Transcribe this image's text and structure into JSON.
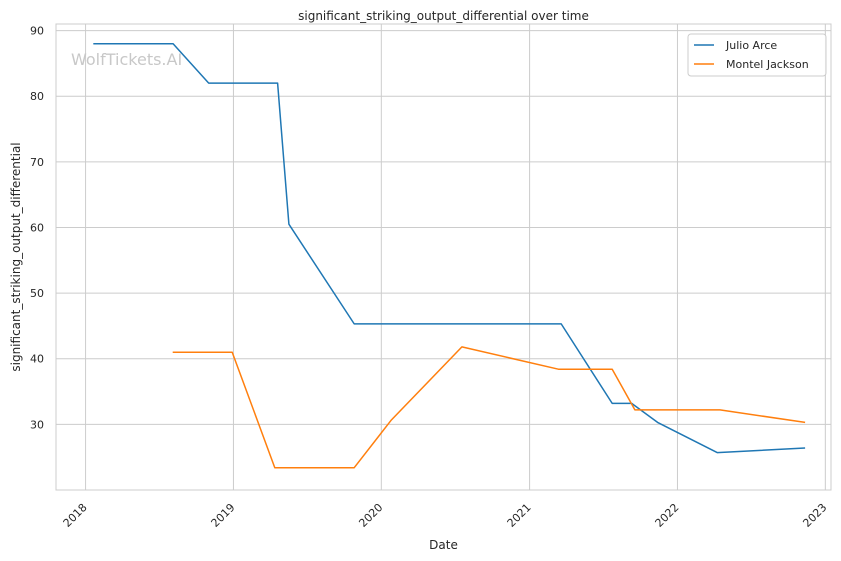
{
  "chart_data": {
    "type": "line",
    "title": "significant_striking_output_differential over time",
    "xlabel": "Date",
    "ylabel": "significant_striking_output_differential",
    "watermark": "WolfTickets.AI",
    "xlim": [
      "2017-10-20",
      "2023-01-15"
    ],
    "ylim": [
      20.0,
      91.0
    ],
    "x_ticks": [
      "2018",
      "2019",
      "2020",
      "2021",
      "2022",
      "2023"
    ],
    "y_ticks": [
      30,
      40,
      50,
      60,
      70,
      80,
      90
    ],
    "grid": true,
    "legend_position": "top-right",
    "series": [
      {
        "name": "Julio Arce",
        "color": "#1f77b4",
        "points": [
          {
            "x": "2018-01-20",
            "y": 88.0
          },
          {
            "x": "2018-08-05",
            "y": 88.0
          },
          {
            "x": "2018-11-01",
            "y": 82.0
          },
          {
            "x": "2019-04-20",
            "y": 82.0
          },
          {
            "x": "2019-05-18",
            "y": 60.5
          },
          {
            "x": "2019-10-26",
            "y": 45.3
          },
          {
            "x": "2021-03-20",
            "y": 45.3
          },
          {
            "x": "2021-07-24",
            "y": 33.2
          },
          {
            "x": "2021-09-10",
            "y": 33.2
          },
          {
            "x": "2021-11-13",
            "y": 30.3
          },
          {
            "x": "2022-04-09",
            "y": 25.7
          },
          {
            "x": "2022-11-12",
            "y": 26.4
          }
        ]
      },
      {
        "name": "Montel Jackson",
        "color": "#ff7f0e",
        "points": [
          {
            "x": "2018-08-04",
            "y": 41.0
          },
          {
            "x": "2018-12-29",
            "y": 41.0
          },
          {
            "x": "2019-04-13",
            "y": 23.4
          },
          {
            "x": "2019-10-26",
            "y": 23.4
          },
          {
            "x": "2020-01-25",
            "y": 30.6
          },
          {
            "x": "2020-07-18",
            "y": 41.8
          },
          {
            "x": "2021-03-13",
            "y": 38.4
          },
          {
            "x": "2021-07-24",
            "y": 38.4
          },
          {
            "x": "2021-09-18",
            "y": 32.2
          },
          {
            "x": "2022-04-16",
            "y": 32.2
          },
          {
            "x": "2022-11-12",
            "y": 30.3
          }
        ]
      }
    ]
  }
}
